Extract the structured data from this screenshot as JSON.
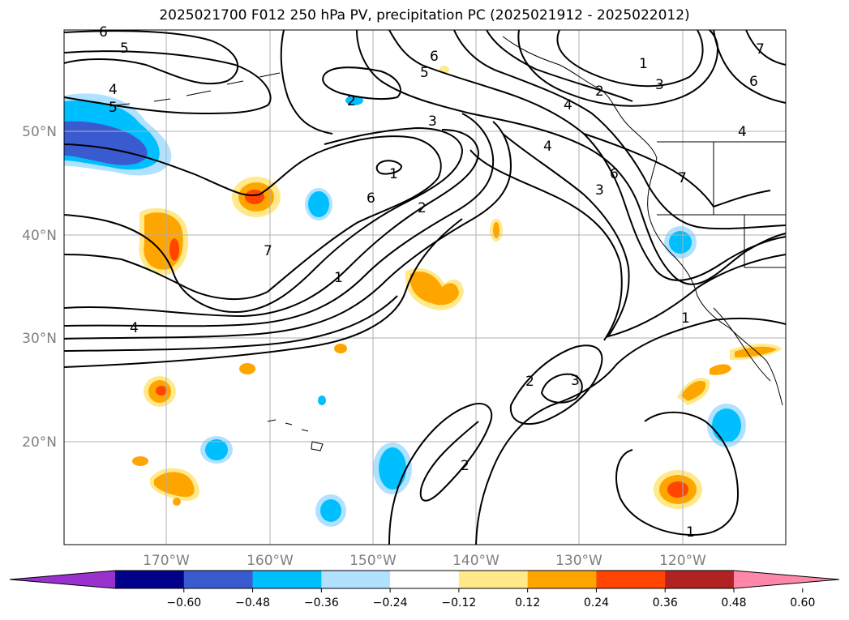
{
  "title": "2025021700 F012 250 hPa PV, precipitation PC (2025021912 - 2025022012)",
  "lat_labels": [
    "50°N",
    "40°N",
    "30°N",
    "20°N"
  ],
  "lon_labels": [
    "170°W",
    "160°W",
    "150°W",
    "140°W",
    "130°W",
    "120°W"
  ],
  "contour_labels": [
    "6",
    "5",
    "4",
    "5",
    "1",
    "6",
    "5",
    "2",
    "4",
    "2",
    "3",
    "7",
    "6",
    "4",
    "3",
    "1",
    "4",
    "7",
    "6",
    "2",
    "3",
    "7",
    "1",
    "6",
    "4",
    "1",
    "2",
    "3",
    "2",
    "1"
  ],
  "colorbar": {
    "ticks": [
      "−0.60",
      "−0.48",
      "−0.36",
      "−0.24",
      "−0.12",
      "0.12",
      "0.24",
      "0.36",
      "0.48",
      "0.60"
    ],
    "colors": [
      "#9932cc",
      "#00008b",
      "#3a5bd0",
      "#00bfff",
      "#b0e2ff",
      "#ffffff",
      "#ffe98a",
      "#ffa500",
      "#ff4500",
      "#b22222",
      "#ff88aa"
    ]
  }
}
